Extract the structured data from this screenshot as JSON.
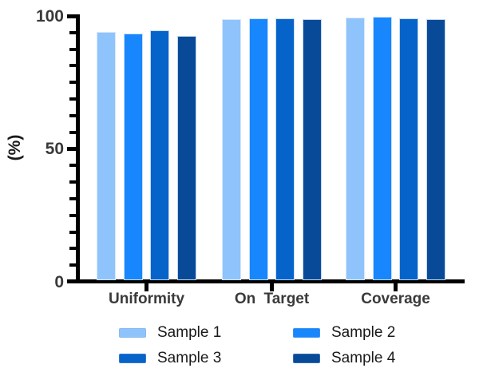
{
  "chart_data": {
    "type": "bar",
    "title": "",
    "ylabel": "(%)",
    "xlabel": "",
    "categories": [
      "Uniformity",
      "On Target",
      "Coverage"
    ],
    "series": [
      {
        "name": "Sample 1",
        "color": "#8FC3FB",
        "values": [
          94.0,
          98.9,
          99.4
        ]
      },
      {
        "name": "Sample 2",
        "color": "#1886FC",
        "values": [
          93.4,
          99.2,
          99.6
        ]
      },
      {
        "name": "Sample 3",
        "color": "#0663C9",
        "values": [
          94.6,
          99.2,
          99.1
        ]
      },
      {
        "name": "Sample 4",
        "color": "#084A98",
        "values": [
          92.6,
          98.9,
          98.8
        ]
      }
    ],
    "ylim": [
      0,
      100
    ],
    "yticks": [
      0,
      50,
      100
    ],
    "grid": false,
    "legend_position": "bottom",
    "colors": {
      "axis": "#000000",
      "tick_label_text": "#3A3A3A",
      "category_label_text": "#3A3A3A",
      "legend_text": "#1A1A1A",
      "background": "#FFFFFF"
    }
  }
}
